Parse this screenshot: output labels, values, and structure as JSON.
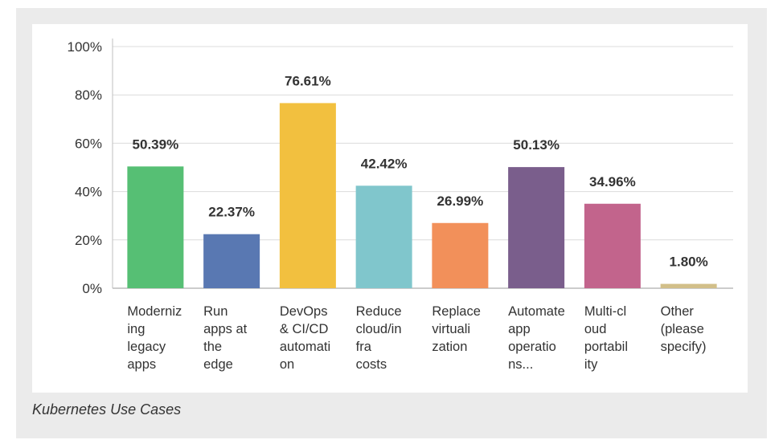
{
  "caption": "Kubernetes Use Cases",
  "chart_data": {
    "type": "bar",
    "title": "",
    "xlabel": "",
    "ylabel": "",
    "ylim": [
      0,
      100
    ],
    "yticks": [
      "0%",
      "20%",
      "40%",
      "60%",
      "80%",
      "100%"
    ],
    "grid": true,
    "categories": [
      [
        "Moderniz",
        "ing",
        "legacy",
        "apps"
      ],
      [
        "Run",
        "apps at",
        "the",
        "edge"
      ],
      [
        "DevOps",
        "& CI/CD",
        "automati",
        "on"
      ],
      [
        "Reduce",
        "cloud/in",
        "fra",
        "costs"
      ],
      [
        "Replace",
        "virtuali",
        "zation"
      ],
      [
        "Automate",
        "app",
        "operatio",
        "ns..."
      ],
      [
        "Multi-cl",
        "oud",
        "portabil",
        "ity"
      ],
      [
        "Other",
        "(please",
        "specify)"
      ]
    ],
    "values": [
      50.39,
      22.37,
      76.61,
      42.42,
      26.99,
      50.13,
      34.96,
      1.8
    ],
    "value_labels": [
      "50.39%",
      "22.37%",
      "76.61%",
      "42.42%",
      "26.99%",
      "50.13%",
      "34.96%",
      "1.80%"
    ],
    "colors": [
      "#56bf74",
      "#5978b2",
      "#f2c03f",
      "#80c6cc",
      "#f2905a",
      "#7a5e8c",
      "#c2648c",
      "#d2bf89"
    ]
  }
}
